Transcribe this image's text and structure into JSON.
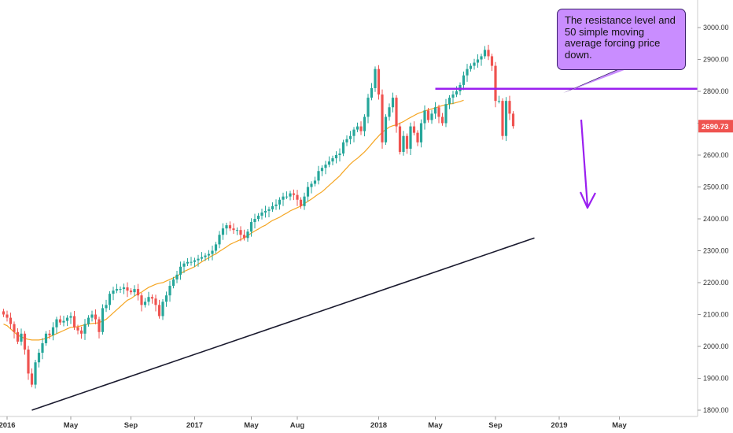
{
  "chart_data": {
    "type": "candlestick",
    "title": "",
    "xlabel": "",
    "ylabel": "",
    "ylim": [
      1790,
      3090
    ],
    "y_ticks": [
      1800,
      1900,
      2000,
      2100,
      2200,
      2300,
      2400,
      2500,
      2600,
      2700,
      2800,
      2900,
      3000
    ],
    "y_tick_labels": [
      "1800.00",
      "1900.00",
      "2000.00",
      "2100.00",
      "2200.00",
      "2300.00",
      "2400.00",
      "2500.00",
      "2600.00",
      "2700.00",
      "2800.00",
      "2900.00",
      "3000.00"
    ],
    "x_tick_labels": [
      "2016",
      "May",
      "Sep",
      "2017",
      "May",
      "Aug",
      "2018",
      "May",
      "Sep",
      "2019",
      "May"
    ],
    "x_tick_weeks": [
      1,
      19,
      36,
      54,
      70,
      83,
      106,
      122,
      139,
      157,
      174
    ],
    "grid": false,
    "up_color": "#26a69a",
    "down_color": "#ef5350",
    "ma50_color": "#f5a623",
    "ma200_color": "#1a1a2e",
    "last_price": "2690.73",
    "last_price_value": 2690.73,
    "candles_weekly_close": [
      2100,
      2090,
      2070,
      2045,
      2015,
      2040,
      1990,
      1915,
      1880,
      1950,
      1980,
      2010,
      2040,
      2035,
      2060,
      2085,
      2075,
      2080,
      2090,
      2095,
      2060,
      2050,
      2040,
      2070,
      2090,
      2100,
      2085,
      2045,
      2120,
      2130,
      2165,
      2175,
      2180,
      2180,
      2185,
      2175,
      2170,
      2180,
      2160,
      2130,
      2140,
      2155,
      2150,
      2130,
      2095,
      2140,
      2160,
      2190,
      2210,
      2225,
      2250,
      2260,
      2265,
      2265,
      2270,
      2275,
      2280,
      2285,
      2290,
      2300,
      2320,
      2350,
      2370,
      2380,
      2370,
      2365,
      2365,
      2350,
      2340,
      2360,
      2390,
      2400,
      2410,
      2420,
      2425,
      2430,
      2440,
      2445,
      2460,
      2470,
      2470,
      2480,
      2475,
      2460,
      2440,
      2470,
      2500,
      2510,
      2520,
      2550,
      2560,
      2570,
      2580,
      2590,
      2600,
      2605,
      2640,
      2650,
      2660,
      2680,
      2690,
      2675,
      2720,
      2780,
      2810,
      2870,
      2790,
      2640,
      2720,
      2750,
      2780,
      2690,
      2610,
      2660,
      2620,
      2690,
      2670,
      2640,
      2700,
      2740,
      2710,
      2730,
      2750,
      2720,
      2700,
      2760,
      2780,
      2790,
      2800,
      2820,
      2850,
      2870,
      2880,
      2890,
      2900,
      2910,
      2930,
      2910,
      2880,
      2770,
      2770,
      2660,
      2770,
      2730,
      2690.73
    ],
    "annotations": {
      "callout_text": "The resistance level and 50 simple moving average forcing price down.",
      "resistance_level": 2808,
      "resistance_color": "#9a1ff0",
      "arrow_color": "#9a1ff0",
      "arrow_direction": "down"
    },
    "series": [
      {
        "name": "",
        "kind": "sma50",
        "values": [
          2070,
          2065,
          2055,
          2045,
          2035,
          2030,
          2025,
          2022,
          2020,
          2020,
          2020,
          2022,
          2025,
          2030,
          2035,
          2040,
          2045,
          2050,
          2055,
          2060,
          2060,
          2062,
          2065,
          2068,
          2070,
          2072,
          2073,
          2074,
          2080,
          2085,
          2095,
          2105,
          2115,
          2125,
          2135,
          2145,
          2150,
          2158,
          2165,
          2170,
          2178,
          2185,
          2190,
          2195,
          2198,
          2200,
          2205,
          2210,
          2215,
          2220,
          2228,
          2235,
          2240,
          2245,
          2250,
          2258,
          2265,
          2272,
          2278,
          2285,
          2290,
          2298,
          2305,
          2312,
          2320,
          2325,
          2330,
          2335,
          2340,
          2348,
          2355,
          2362,
          2368,
          2375,
          2380,
          2388,
          2395,
          2400,
          2405,
          2412,
          2418,
          2425,
          2430,
          2435,
          2440,
          2448,
          2455,
          2462,
          2470,
          2478,
          2485,
          2495,
          2505,
          2515,
          2525,
          2535,
          2548,
          2560,
          2572,
          2582,
          2590,
          2600,
          2610,
          2622,
          2635,
          2648,
          2660,
          2672,
          2680,
          2688,
          2692,
          2695,
          2700,
          2705,
          2712,
          2718,
          2724,
          2730,
          2734,
          2738,
          2742,
          2745,
          2748,
          2752,
          2755,
          2758,
          2760,
          2762,
          2765,
          2768,
          2772
        ]
      },
      {
        "name": "",
        "kind": "sma200",
        "start_week": 8,
        "start_value": 1800,
        "end_week": 150,
        "end_value": 2340
      }
    ]
  }
}
